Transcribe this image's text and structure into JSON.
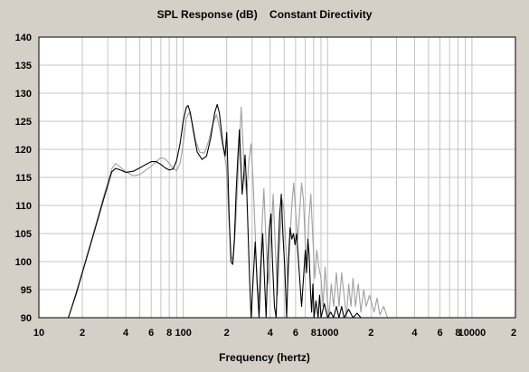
{
  "chart_data": {
    "type": "line",
    "title": "SPL Response (dB)    Constant Directivity",
    "xlabel": "Frequency (hertz)",
    "ylabel": "",
    "xscale": "log",
    "xlim": [
      10,
      20000
    ],
    "ylim": [
      90,
      140
    ],
    "grid": true,
    "y_ticks": [
      90,
      95,
      100,
      105,
      110,
      115,
      120,
      125,
      130,
      135,
      140
    ],
    "x_ticks": [
      {
        "value": 10,
        "label": "10"
      },
      {
        "value": 20,
        "label": "2"
      },
      {
        "value": 40,
        "label": "4"
      },
      {
        "value": 60,
        "label": "6"
      },
      {
        "value": 80,
        "label": "8"
      },
      {
        "value": 100,
        "label": "100"
      },
      {
        "value": 200,
        "label": "2"
      },
      {
        "value": 400,
        "label": "4"
      },
      {
        "value": 600,
        "label": "6"
      },
      {
        "value": 800,
        "label": "8"
      },
      {
        "value": 1000,
        "label": "1000"
      },
      {
        "value": 2000,
        "label": "2"
      },
      {
        "value": 4000,
        "label": "4"
      },
      {
        "value": 6000,
        "label": "6"
      },
      {
        "value": 8000,
        "label": "8"
      },
      {
        "value": 10000,
        "label": "10000"
      },
      {
        "value": 20000,
        "label": "2"
      }
    ],
    "series": [
      {
        "color": "#000000",
        "points": [
          [
            16,
            90
          ],
          [
            18,
            94
          ],
          [
            20,
            98
          ],
          [
            24,
            105
          ],
          [
            28,
            111
          ],
          [
            32,
            116
          ],
          [
            34,
            116.6
          ],
          [
            36,
            116.4
          ],
          [
            40,
            115.9
          ],
          [
            45,
            116.1
          ],
          [
            50,
            116.7
          ],
          [
            55,
            117.3
          ],
          [
            60,
            117.8
          ],
          [
            65,
            117.8
          ],
          [
            70,
            117.3
          ],
          [
            75,
            116.7
          ],
          [
            80,
            116.3
          ],
          [
            85,
            116.5
          ],
          [
            90,
            118
          ],
          [
            95,
            121
          ],
          [
            100,
            125
          ],
          [
            105,
            127.5
          ],
          [
            108,
            127.8
          ],
          [
            112,
            126.5
          ],
          [
            118,
            123
          ],
          [
            125,
            119.5
          ],
          [
            135,
            118.2
          ],
          [
            145,
            118.8
          ],
          [
            155,
            122
          ],
          [
            165,
            126.5
          ],
          [
            172,
            128
          ],
          [
            178,
            126.5
          ],
          [
            188,
            121
          ],
          [
            195,
            118.8
          ],
          [
            200,
            123
          ],
          [
            203,
            118
          ],
          [
            208,
            108
          ],
          [
            214,
            100
          ],
          [
            220,
            99.5
          ],
          [
            226,
            104
          ],
          [
            232,
            112
          ],
          [
            238,
            118
          ],
          [
            245,
            123.5
          ],
          [
            250,
            118
          ],
          [
            256,
            112
          ],
          [
            262,
            115
          ],
          [
            268,
            119
          ],
          [
            275,
            113
          ],
          [
            280,
            107
          ],
          [
            288,
            97
          ],
          [
            295,
            90
          ],
          [
            305,
            97
          ],
          [
            315,
            103.5
          ],
          [
            325,
            96
          ],
          [
            335,
            90
          ],
          [
            345,
            99
          ],
          [
            355,
            105
          ],
          [
            365,
            97
          ],
          [
            375,
            90
          ],
          [
            385,
            100
          ],
          [
            395,
            106
          ],
          [
            405,
            108.5
          ],
          [
            415,
            100
          ],
          [
            428,
            92
          ],
          [
            440,
            90
          ],
          [
            452,
            100
          ],
          [
            465,
            108
          ],
          [
            478,
            112
          ],
          [
            490,
            105
          ],
          [
            505,
            99
          ],
          [
            520,
            90
          ],
          [
            535,
            100
          ],
          [
            550,
            106
          ],
          [
            565,
            104
          ],
          [
            580,
            105
          ],
          [
            595,
            103
          ],
          [
            610,
            105
          ],
          [
            625,
            101
          ],
          [
            640,
            97
          ],
          [
            660,
            92
          ],
          [
            680,
            97
          ],
          [
            700,
            102
          ],
          [
            715,
            98
          ],
          [
            730,
            104
          ],
          [
            745,
            101
          ],
          [
            760,
            95
          ],
          [
            775,
            91
          ],
          [
            790,
            96
          ],
          [
            805,
            90
          ],
          [
            830,
            93
          ],
          [
            860,
            90
          ],
          [
            880,
            94
          ],
          [
            900,
            90
          ],
          [
            950,
            92.5
          ],
          [
            1000,
            90
          ],
          [
            1050,
            91
          ],
          [
            1100,
            90
          ],
          [
            1150,
            92
          ],
          [
            1200,
            90
          ],
          [
            1250,
            92
          ],
          [
            1300,
            90
          ],
          [
            1400,
            91.5
          ],
          [
            1500,
            90
          ],
          [
            1600,
            90.8
          ],
          [
            1700,
            90
          ]
        ]
      },
      {
        "color": "#a0a0a0",
        "points": [
          [
            16,
            90
          ],
          [
            18,
            94.3
          ],
          [
            20,
            98.3
          ],
          [
            24,
            105.3
          ],
          [
            28,
            111.5
          ],
          [
            32,
            116.5
          ],
          [
            34,
            117.5
          ],
          [
            36,
            117
          ],
          [
            40,
            116
          ],
          [
            45,
            115.3
          ],
          [
            50,
            115.5
          ],
          [
            55,
            116.3
          ],
          [
            60,
            117
          ],
          [
            65,
            117.8
          ],
          [
            70,
            118.5
          ],
          [
            75,
            118.3
          ],
          [
            80,
            117.5
          ],
          [
            85,
            116.6
          ],
          [
            90,
            116.2
          ],
          [
            95,
            117.5
          ],
          [
            100,
            121
          ],
          [
            105,
            125.5
          ],
          [
            110,
            126.6
          ],
          [
            115,
            125
          ],
          [
            122,
            121.5
          ],
          [
            130,
            119.5
          ],
          [
            140,
            119.3
          ],
          [
            150,
            121.5
          ],
          [
            160,
            124.5
          ],
          [
            170,
            126.2
          ],
          [
            178,
            124
          ],
          [
            188,
            120.5
          ],
          [
            198,
            117.2
          ],
          [
            203,
            113
          ],
          [
            208,
            107
          ],
          [
            215,
            101
          ],
          [
            222,
            100
          ],
          [
            230,
            106
          ],
          [
            238,
            114
          ],
          [
            246,
            122
          ],
          [
            252,
            127.5
          ],
          [
            258,
            122
          ],
          [
            266,
            115
          ],
          [
            275,
            112
          ],
          [
            285,
            118
          ],
          [
            295,
            121
          ],
          [
            305,
            114
          ],
          [
            315,
            105
          ],
          [
            325,
            96
          ],
          [
            335,
            93
          ],
          [
            348,
            104
          ],
          [
            362,
            113
          ],
          [
            375,
            103
          ],
          [
            390,
            96
          ],
          [
            405,
            104
          ],
          [
            420,
            112
          ],
          [
            435,
            102
          ],
          [
            450,
            94
          ],
          [
            468,
            104
          ],
          [
            485,
            111
          ],
          [
            500,
            109
          ],
          [
            515,
            102
          ],
          [
            530,
            96
          ],
          [
            548,
            104
          ],
          [
            565,
            110
          ],
          [
            582,
            114
          ],
          [
            600,
            109
          ],
          [
            620,
            104
          ],
          [
            640,
            109
          ],
          [
            660,
            114
          ],
          [
            680,
            111
          ],
          [
            700,
            103
          ],
          [
            720,
            99
          ],
          [
            740,
            107
          ],
          [
            765,
            112
          ],
          [
            790,
            104
          ],
          [
            815,
            97
          ],
          [
            840,
            102
          ],
          [
            870,
            99
          ],
          [
            900,
            97
          ],
          [
            930,
            92
          ],
          [
            960,
            99
          ],
          [
            990,
            94
          ],
          [
            1020,
            90
          ],
          [
            1060,
            96
          ],
          [
            1100,
            92
          ],
          [
            1150,
            98
          ],
          [
            1200,
            92
          ],
          [
            1250,
            98
          ],
          [
            1300,
            94
          ],
          [
            1350,
            90
          ],
          [
            1400,
            96
          ],
          [
            1450,
            92
          ],
          [
            1500,
            97
          ],
          [
            1560,
            92
          ],
          [
            1630,
            96
          ],
          [
            1700,
            91
          ],
          [
            1780,
            95
          ],
          [
            1850,
            92
          ],
          [
            1950,
            94
          ],
          [
            2100,
            91
          ],
          [
            2200,
            93.5
          ],
          [
            2300,
            90.5
          ],
          [
            2450,
            92
          ],
          [
            2600,
            90
          ]
        ]
      }
    ]
  }
}
